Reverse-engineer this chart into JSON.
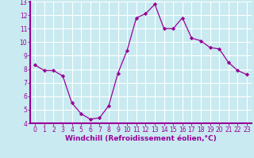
{
  "x": [
    0,
    1,
    2,
    3,
    4,
    5,
    6,
    7,
    8,
    9,
    10,
    11,
    12,
    13,
    14,
    15,
    16,
    17,
    18,
    19,
    20,
    21,
    22,
    23
  ],
  "y": [
    8.3,
    7.9,
    7.9,
    7.5,
    5.5,
    4.7,
    4.3,
    4.4,
    5.3,
    7.7,
    9.4,
    11.8,
    12.1,
    12.8,
    11.0,
    11.0,
    11.8,
    10.3,
    10.1,
    9.6,
    9.5,
    8.5,
    7.9,
    7.6
  ],
  "line_color": "#990099",
  "marker": "D",
  "marker_size": 2.2,
  "bg_color": "#c8eaf0",
  "grid_color": "#ffffff",
  "xlabel": "Windchill (Refroidissement éolien,°C)",
  "xlabel_color": "#990099",
  "tick_color": "#990099",
  "ylim": [
    4,
    13
  ],
  "xlim": [
    -0.5,
    23.5
  ],
  "yticks": [
    4,
    5,
    6,
    7,
    8,
    9,
    10,
    11,
    12,
    13
  ],
  "xticks": [
    0,
    1,
    2,
    3,
    4,
    5,
    6,
    7,
    8,
    9,
    10,
    11,
    12,
    13,
    14,
    15,
    16,
    17,
    18,
    19,
    20,
    21,
    22,
    23
  ],
  "tick_fontsize": 5.5,
  "xlabel_fontsize": 6.5,
  "spine_color": "#990099",
  "bottom_bar_color": "#660066"
}
